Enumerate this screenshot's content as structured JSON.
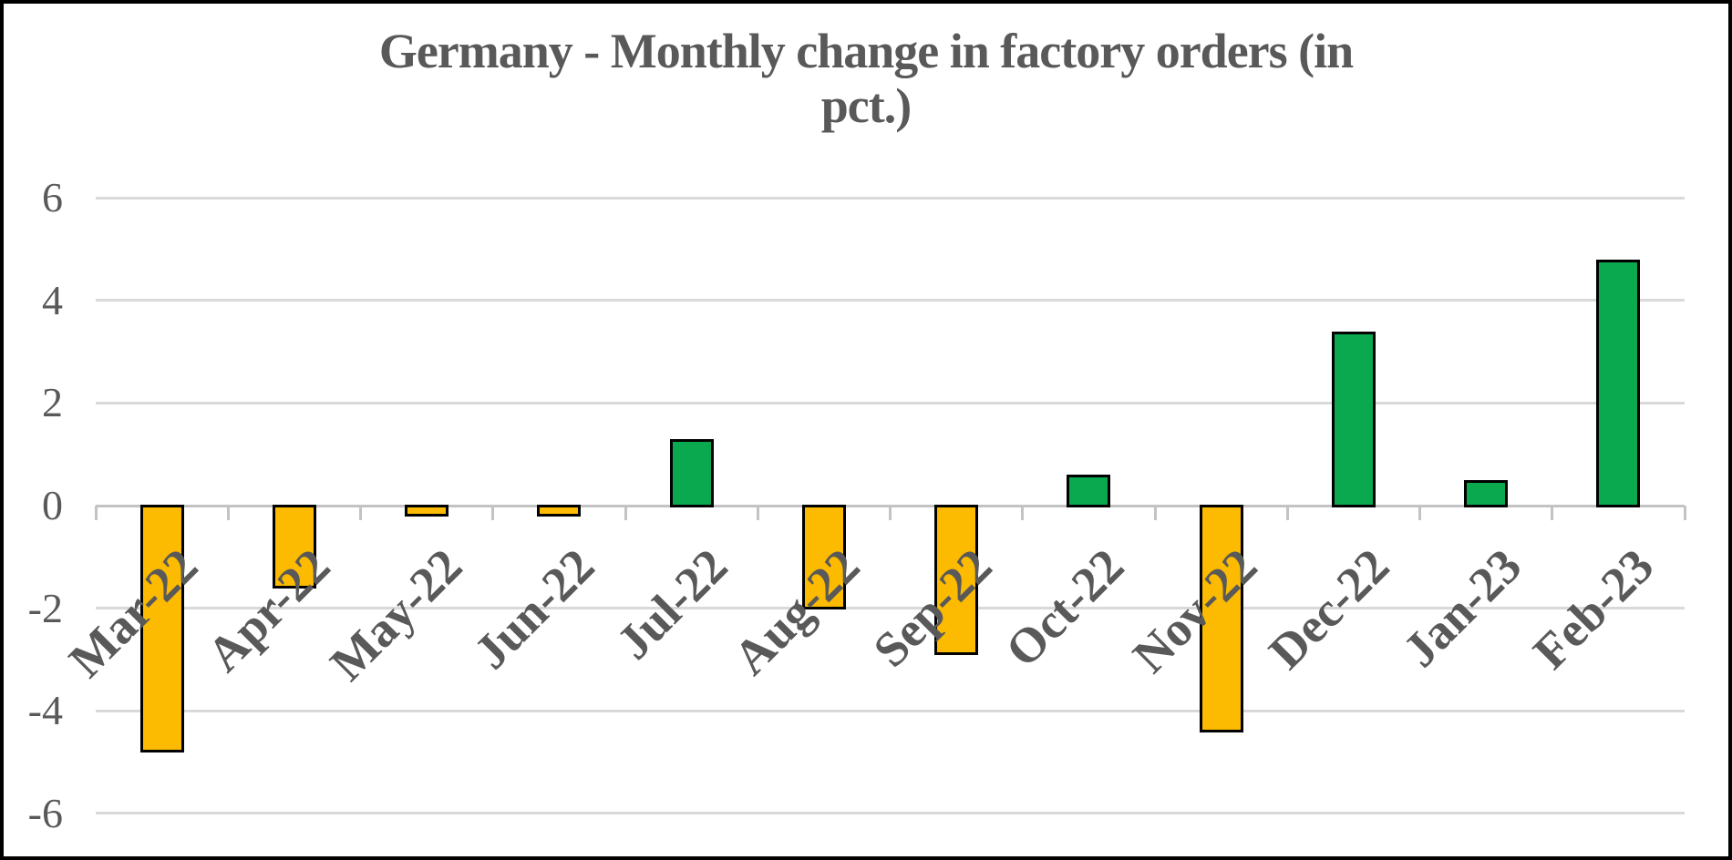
{
  "chart_data": {
    "type": "bar",
    "title": "Germany - Monthly change in factory orders (in pct.)",
    "title_lines": [
      "Germany - Monthly change in factory orders (in",
      "pct.)"
    ],
    "categories": [
      "Mar-22",
      "Apr-22",
      "May-22",
      "Jun-22",
      "Jul-22",
      "Aug-22",
      "Sep-22",
      "Oct-22",
      "Nov-22",
      "Dec-22",
      "Jan-23",
      "Feb-23"
    ],
    "values": [
      -4.8,
      -1.6,
      -0.2,
      -0.2,
      1.3,
      -2.0,
      -2.9,
      0.6,
      -4.4,
      3.4,
      0.5,
      4.8
    ],
    "xlabel": "",
    "ylabel": "",
    "y_ticks": [
      6,
      4,
      2,
      0,
      -2,
      -4,
      -6
    ],
    "ylim": [
      -7,
      7
    ],
    "grid": true,
    "legend_position": "none",
    "colors": {
      "positive_bar": "#0ba94f",
      "negative_bar": "#fcbb00",
      "bar_border": "#000000",
      "gridline": "#d9d9d9",
      "axis_line": "#c3c3c3",
      "text": "#595959",
      "background": "#ffffff",
      "frame_border": "#000000"
    }
  }
}
